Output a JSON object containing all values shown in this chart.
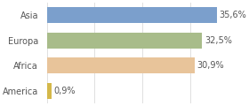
{
  "categories": [
    "Asia",
    "Europa",
    "Africa",
    "America"
  ],
  "values": [
    35.6,
    32.5,
    30.9,
    0.9
  ],
  "labels": [
    "35,6%",
    "32,5%",
    "30,9%",
    "0,9%"
  ],
  "bar_colors": [
    "#7b9fcc",
    "#a8bc8a",
    "#e8c49a",
    "#d4b84a"
  ],
  "background_color": "#ffffff",
  "xlim": [
    0,
    40
  ],
  "bar_height": 0.62,
  "label_fontsize": 7,
  "tick_fontsize": 7,
  "grid_color": "#e0e0e0",
  "grid_ticks": [
    0,
    10,
    20,
    30,
    40
  ]
}
